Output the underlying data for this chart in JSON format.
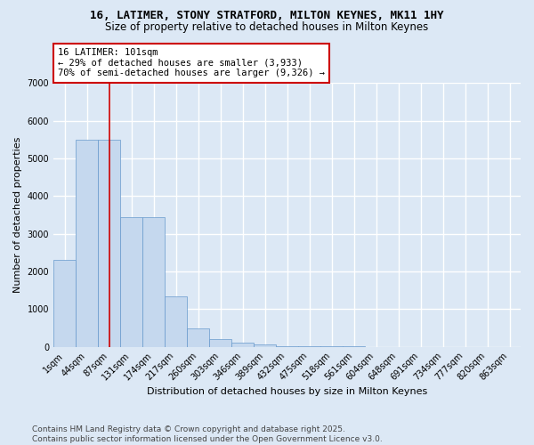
{
  "title1": "16, LATIMER, STONY STRATFORD, MILTON KEYNES, MK11 1HY",
  "title2": "Size of property relative to detached houses in Milton Keynes",
  "xlabel": "Distribution of detached houses by size in Milton Keynes",
  "ylabel": "Number of detached properties",
  "categories": [
    "1sqm",
    "44sqm",
    "87sqm",
    "131sqm",
    "174sqm",
    "217sqm",
    "260sqm",
    "303sqm",
    "346sqm",
    "389sqm",
    "432sqm",
    "475sqm",
    "518sqm",
    "561sqm",
    "604sqm",
    "648sqm",
    "691sqm",
    "734sqm",
    "777sqm",
    "820sqm",
    "863sqm"
  ],
  "bar_values": [
    2300,
    5500,
    5500,
    3450,
    3450,
    1330,
    480,
    200,
    100,
    50,
    20,
    5,
    3,
    2,
    1,
    0,
    0,
    0,
    0,
    0,
    0
  ],
  "bar_color": "#c5d8ee",
  "bar_edgecolor": "#6699cc",
  "vline_x_index": 2,
  "vline_color": "#cc0000",
  "annotation_title": "16 LATIMER: 101sqm",
  "annotation_line2": "← 29% of detached houses are smaller (3,933)",
  "annotation_line3": "70% of semi-detached houses are larger (9,326) →",
  "annotation_box_facecolor": "#ffffff",
  "annotation_box_edgecolor": "#cc0000",
  "ylim": [
    0,
    7000
  ],
  "yticks": [
    0,
    1000,
    2000,
    3000,
    4000,
    5000,
    6000,
    7000
  ],
  "bg_color": "#dce8f5",
  "plot_bg_color": "#dce8f5",
  "grid_color": "#ffffff",
  "footer1": "Contains HM Land Registry data © Crown copyright and database right 2025.",
  "footer2": "Contains public sector information licensed under the Open Government Licence v3.0.",
  "title_fontsize": 9,
  "subtitle_fontsize": 8.5,
  "tick_fontsize": 7,
  "ylabel_fontsize": 8,
  "xlabel_fontsize": 8,
  "annotation_fontsize": 7.5,
  "footer_fontsize": 6.5
}
